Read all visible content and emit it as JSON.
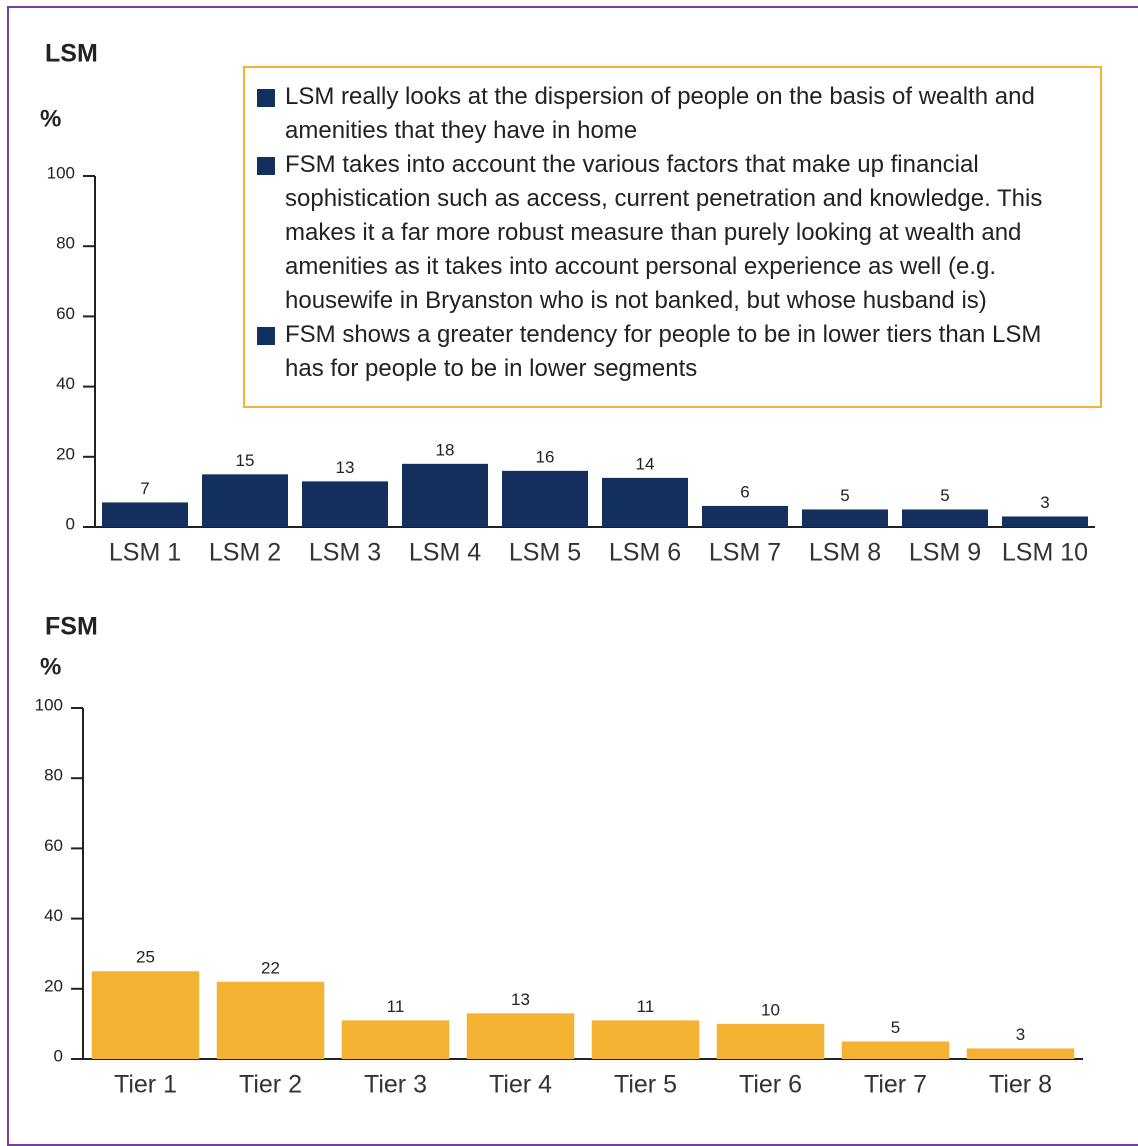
{
  "chart_data": [
    {
      "type": "bar",
      "title": "LSM",
      "y_label": "%",
      "categories": [
        "LSM 1",
        "LSM 2",
        "LSM 3",
        "LSM 4",
        "LSM 5",
        "LSM 6",
        "LSM 7",
        "LSM 8",
        "LSM 9",
        "LSM 10"
      ],
      "values": [
        7,
        15,
        13,
        18,
        16,
        14,
        6,
        5,
        5,
        3
      ],
      "color": "#14305e",
      "ylim": [
        0,
        100
      ],
      "yticks": [
        0,
        20,
        40,
        60,
        80,
        100
      ],
      "annotations": [
        "LSM really looks at the dispersion of people on the basis of wealth and amenities that they have in home",
        "FSM takes into account the various factors that make up financial sophistication such as access, current penetration and knowledge.  This makes it a far more robust measure than purely looking at wealth and amenities as it takes into account personal experience as well (e.g. housewife in Bryanston who is not banked, but whose husband is)",
        "FSM shows a greater tendency for people to be in lower tiers than LSM has for people to be in lower segments"
      ]
    },
    {
      "type": "bar",
      "title": "FSM",
      "y_label": "%",
      "categories": [
        "Tier 1",
        "Tier 2",
        "Tier 3",
        "Tier 4",
        "Tier 5",
        "Tier 6",
        "Tier 7",
        "Tier 8"
      ],
      "values": [
        25,
        22,
        11,
        13,
        11,
        10,
        5,
        3
      ],
      "color": "#f4b233",
      "ylim": [
        0,
        100
      ],
      "yticks": [
        0,
        20,
        40,
        60,
        80,
        100
      ]
    }
  ]
}
